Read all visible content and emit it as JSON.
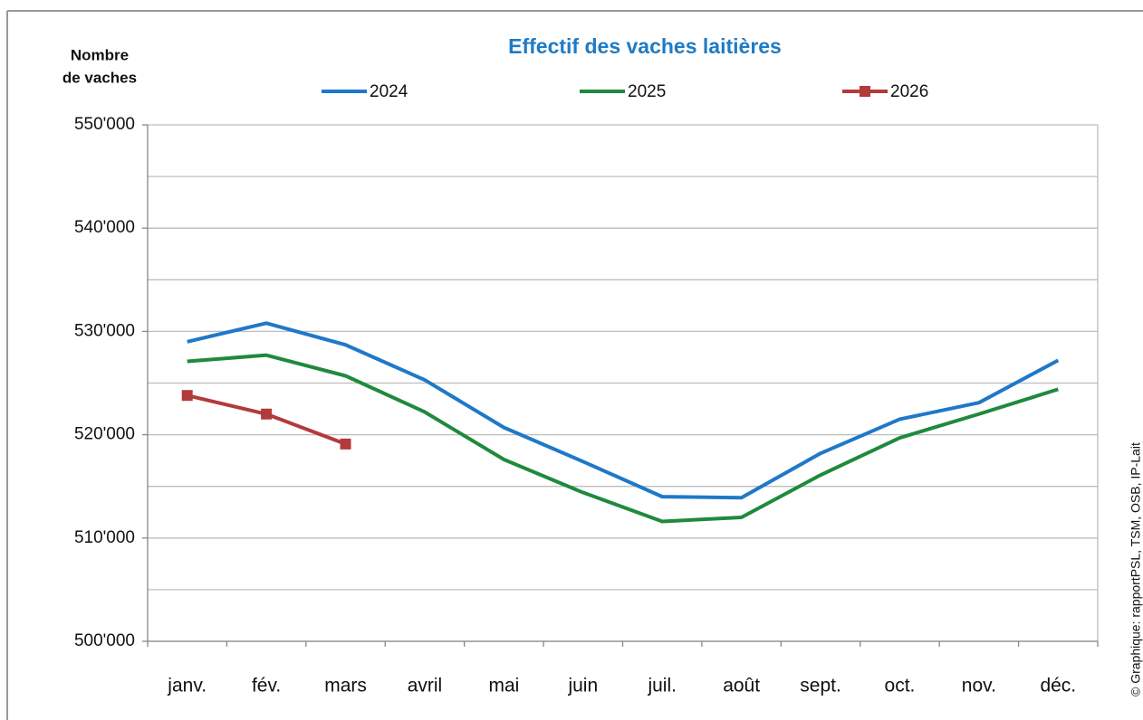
{
  "chart_data": {
    "type": "line",
    "title": "Effectif des vaches laitières",
    "ylabel": [
      "Nombre",
      "de vaches"
    ],
    "source": "© Graphique: rapportPSL, TSM, OSB, IP-Lait",
    "categories": [
      "janv.",
      "fév.",
      "mars",
      "avril",
      "mai",
      "juin",
      "juil.",
      "août",
      "sept.",
      "oct.",
      "nov.",
      "déc."
    ],
    "series": [
      {
        "name": "2024",
        "color": "#1f78c8",
        "marker": false,
        "values": [
          529000,
          530800,
          528700,
          525300,
          520700,
          517400,
          514000,
          513900,
          518200,
          521500,
          523100,
          527200
        ]
      },
      {
        "name": "2025",
        "color": "#1f8a3c",
        "marker": false,
        "values": [
          527100,
          527700,
          525700,
          522200,
          517600,
          514400,
          511600,
          512000,
          516100,
          519700,
          522000,
          524400
        ]
      },
      {
        "name": "2026",
        "color": "#b33a3a",
        "marker": true,
        "values": [
          523800,
          522000,
          519100,
          null,
          null,
          null,
          null,
          null,
          null,
          null,
          null,
          null
        ]
      }
    ],
    "ylim": [
      500000,
      550000
    ],
    "yticks": [
      {
        "value": 500000,
        "label": "500'000"
      },
      {
        "value": 510000,
        "label": "510'000"
      },
      {
        "value": 520000,
        "label": "520'000"
      },
      {
        "value": 530000,
        "label": "530'000"
      },
      {
        "value": 540000,
        "label": "540'000"
      },
      {
        "value": 550000,
        "label": "550'000"
      }
    ],
    "minor_grid": [
      505000,
      515000,
      525000,
      535000,
      545000
    ],
    "grid": true
  }
}
